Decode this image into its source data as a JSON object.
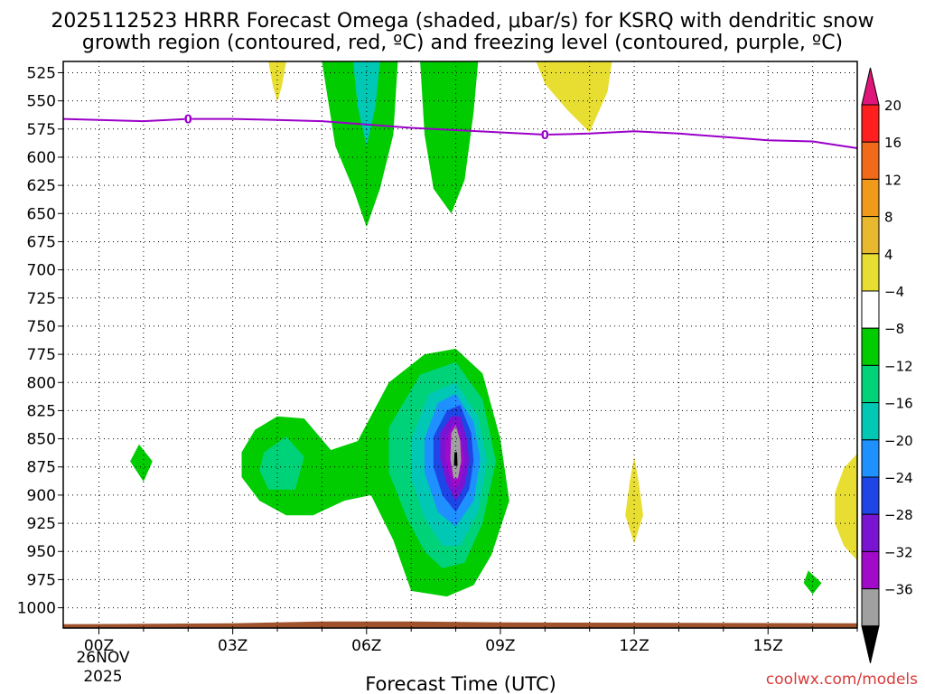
{
  "chart_data": {
    "type": "heatmap",
    "title_line1": "2025112523 HRRR Forecast Omega (shaded, μbar/s) for KSRQ with dendritic snow",
    "title_line2": "growth region (contoured, red, ºC) and freezing level (contoured, purple, ºC)",
    "xlabel": "Forecast Time (UTC)",
    "ylabel": "",
    "xlim": [
      -0.8,
      17
    ],
    "ylim_hPa": [
      515,
      1018
    ],
    "x_ticks": [
      {
        "x": 0,
        "label": "00Z"
      },
      {
        "x": 3,
        "label": "03Z"
      },
      {
        "x": 6,
        "label": "06Z"
      },
      {
        "x": 9,
        "label": "09Z"
      },
      {
        "x": 12,
        "label": "12Z"
      },
      {
        "x": 15,
        "label": "15Z"
      }
    ],
    "date_label_line1": "26NOV",
    "date_label_line2": "2025",
    "y_ticks": [
      525,
      550,
      575,
      600,
      625,
      650,
      675,
      700,
      725,
      750,
      775,
      800,
      825,
      850,
      875,
      900,
      925,
      950,
      975,
      1000
    ],
    "colorbar": {
      "levels": [
        "20",
        "16",
        "12",
        "8",
        "4",
        "−4",
        "−8",
        "−12",
        "−16",
        "−20",
        "−24",
        "−28",
        "−32",
        "−36"
      ],
      "colors": [
        "#ff1f1f",
        "#f06a1a",
        "#f09a1a",
        "#e8b82e",
        "#e8de32",
        "#ffffff",
        "#00cc00",
        "#00d27a",
        "#00c8b4",
        "#1e90ff",
        "#1e46e6",
        "#7a14d2",
        "#a00ac8",
        "#a0a0a0"
      ],
      "top_arrow_color": "#e0157a",
      "bottom_arrow_color": "#000000"
    },
    "freezing_level": {
      "color": "#9a00c8",
      "label": "0",
      "points": [
        [
          -0.8,
          566
        ],
        [
          0,
          567
        ],
        [
          1,
          568
        ],
        [
          2,
          566
        ],
        [
          3,
          566
        ],
        [
          4,
          567
        ],
        [
          5,
          568
        ],
        [
          6,
          571
        ],
        [
          7,
          574
        ],
        [
          8,
          576
        ],
        [
          9,
          578
        ],
        [
          10,
          580
        ],
        [
          11,
          579
        ],
        [
          12,
          577
        ],
        [
          13,
          579
        ],
        [
          14,
          582
        ],
        [
          15,
          585
        ],
        [
          16,
          586
        ],
        [
          17,
          592
        ]
      ],
      "label_points": [
        [
          2,
          566
        ],
        [
          10,
          580
        ]
      ]
    },
    "shaded_regions": [
      {
        "value_range": "4 to 8",
        "color": "#e8de32",
        "points": [
          [
            3.8,
            515
          ],
          [
            4.2,
            515
          ],
          [
            4.1,
            537
          ],
          [
            4.0,
            551
          ],
          [
            3.9,
            537
          ]
        ]
      },
      {
        "value_range": "4 to 8",
        "color": "#e8de32",
        "points": [
          [
            9.8,
            515
          ],
          [
            11.5,
            515
          ],
          [
            11.4,
            542
          ],
          [
            11.0,
            578
          ],
          [
            10.5,
            558
          ],
          [
            10.0,
            535
          ]
        ]
      },
      {
        "value_range": "4 to 8",
        "color": "#e8de32",
        "points": [
          [
            11.9,
            888
          ],
          [
            12.0,
            866
          ],
          [
            12.1,
            888
          ],
          [
            12.2,
            918
          ],
          [
            12.0,
            943
          ],
          [
            11.8,
            918
          ]
        ]
      },
      {
        "value_range": "4 to 8",
        "color": "#e8de32",
        "points": [
          [
            17,
            863
          ],
          [
            16.7,
            876
          ],
          [
            16.5,
            898
          ],
          [
            16.5,
            925
          ],
          [
            16.7,
            945
          ],
          [
            17,
            958
          ]
        ]
      },
      {
        "value_range": "-4 to -8",
        "color": "#00cc00",
        "points": [
          [
            5.0,
            515
          ],
          [
            6.7,
            515
          ],
          [
            6.6,
            580
          ],
          [
            6.3,
            628
          ],
          [
            6.0,
            662
          ],
          [
            5.7,
            628
          ],
          [
            5.3,
            590
          ]
        ]
      },
      {
        "value_range": "-4 to -8",
        "color": "#00cc00",
        "points": [
          [
            7.2,
            515
          ],
          [
            8.5,
            515
          ],
          [
            8.4,
            560
          ],
          [
            8.2,
            620
          ],
          [
            7.9,
            650
          ],
          [
            7.5,
            628
          ],
          [
            7.3,
            580
          ]
        ]
      },
      {
        "value_range": "-12 to -16",
        "color": "#00c8b4",
        "points": [
          [
            5.7,
            515
          ],
          [
            6.3,
            515
          ],
          [
            6.2,
            555
          ],
          [
            6.0,
            590
          ],
          [
            5.8,
            555
          ]
        ]
      },
      {
        "value_range": "-4 to -8",
        "color": "#00cc00",
        "points": [
          [
            0.9,
            855
          ],
          [
            1.2,
            870
          ],
          [
            1.0,
            888
          ],
          [
            0.7,
            870
          ]
        ]
      },
      {
        "value_range": "-4 to -8",
        "color": "#00cc00",
        "points": [
          [
            15.9,
            967
          ],
          [
            16.2,
            978
          ],
          [
            16.0,
            988
          ],
          [
            15.8,
            978
          ]
        ]
      },
      {
        "value_range": "-4 to -8",
        "color": "#00cc00",
        "points": [
          [
            3.2,
            862
          ],
          [
            3.5,
            842
          ],
          [
            4.0,
            830
          ],
          [
            4.6,
            832
          ],
          [
            5.2,
            860
          ],
          [
            5.8,
            852
          ],
          [
            6.5,
            800
          ],
          [
            7.3,
            775
          ],
          [
            8.0,
            770
          ],
          [
            8.6,
            792
          ],
          [
            9.0,
            850
          ],
          [
            9.2,
            905
          ],
          [
            8.8,
            953
          ],
          [
            8.4,
            980
          ],
          [
            7.8,
            990
          ],
          [
            7.0,
            985
          ],
          [
            6.6,
            940
          ],
          [
            6.1,
            900
          ],
          [
            5.5,
            905
          ],
          [
            4.8,
            918
          ],
          [
            4.2,
            918
          ],
          [
            3.6,
            905
          ],
          [
            3.2,
            884
          ]
        ]
      },
      {
        "value_range": "-8 to -12",
        "color": "#00d27a",
        "points": [
          [
            3.7,
            862
          ],
          [
            4.2,
            848
          ],
          [
            4.6,
            866
          ],
          [
            4.4,
            895
          ],
          [
            3.8,
            895
          ],
          [
            3.6,
            878
          ]
        ]
      },
      {
        "value_range": "-8 to -12",
        "color": "#00d27a",
        "points": [
          [
            6.5,
            840
          ],
          [
            7.2,
            793
          ],
          [
            8.0,
            782
          ],
          [
            8.6,
            815
          ],
          [
            8.9,
            870
          ],
          [
            8.6,
            925
          ],
          [
            8.2,
            960
          ],
          [
            7.7,
            965
          ],
          [
            7.3,
            950
          ],
          [
            6.9,
            920
          ],
          [
            6.5,
            880
          ]
        ]
      },
      {
        "value_range": "-12 to -16",
        "color": "#00c8b4",
        "points": [
          [
            7.0,
            850
          ],
          [
            7.4,
            810
          ],
          [
            8.0,
            800
          ],
          [
            8.5,
            830
          ],
          [
            8.7,
            870
          ],
          [
            8.5,
            915
          ],
          [
            8.1,
            945
          ],
          [
            7.7,
            945
          ],
          [
            7.3,
            920
          ],
          [
            7.0,
            885
          ]
        ]
      },
      {
        "value_range": "-16 to -20",
        "color": "#1e90ff",
        "points": [
          [
            7.3,
            850
          ],
          [
            7.6,
            818
          ],
          [
            8.0,
            810
          ],
          [
            8.4,
            835
          ],
          [
            8.55,
            868
          ],
          [
            8.4,
            905
          ],
          [
            8.0,
            928
          ],
          [
            7.6,
            915
          ],
          [
            7.3,
            880
          ]
        ]
      },
      {
        "value_range": "-20 to -24",
        "color": "#1e46e6",
        "points": [
          [
            7.5,
            848
          ],
          [
            7.8,
            825
          ],
          [
            8.1,
            820
          ],
          [
            8.35,
            845
          ],
          [
            8.4,
            870
          ],
          [
            8.3,
            895
          ],
          [
            8.0,
            915
          ],
          [
            7.7,
            900
          ],
          [
            7.5,
            875
          ]
        ]
      },
      {
        "value_range": "-24 to -28",
        "color": "#7a14d2",
        "points": [
          [
            7.65,
            845
          ],
          [
            7.9,
            830
          ],
          [
            8.1,
            830
          ],
          [
            8.25,
            850
          ],
          [
            8.3,
            870
          ],
          [
            8.2,
            892
          ],
          [
            8.0,
            905
          ],
          [
            7.8,
            890
          ],
          [
            7.65,
            868
          ]
        ]
      },
      {
        "value_range": "-28 to -32",
        "color": "#a00ac8",
        "points": [
          [
            7.78,
            850
          ],
          [
            7.95,
            836
          ],
          [
            8.1,
            845
          ],
          [
            8.2,
            868
          ],
          [
            8.1,
            888
          ],
          [
            7.98,
            895
          ],
          [
            7.85,
            882
          ],
          [
            7.76,
            866
          ]
        ]
      },
      {
        "value_range": "-32 to -36",
        "color": "#a0a0a0",
        "points": [
          [
            7.9,
            845
          ],
          [
            8.0,
            838
          ],
          [
            8.1,
            852
          ],
          [
            8.12,
            870
          ],
          [
            8.05,
            885
          ],
          [
            7.95,
            885
          ],
          [
            7.88,
            868
          ]
        ]
      },
      {
        "value_range": "< -36",
        "color": "#000000",
        "points": [
          [
            7.97,
            862
          ],
          [
            8.03,
            862
          ],
          [
            8.04,
            874
          ],
          [
            7.96,
            874
          ]
        ]
      }
    ],
    "surface": {
      "color": "#a0522d",
      "pressure_hPa": 1013
    },
    "credit": "coolwx.com/models"
  }
}
